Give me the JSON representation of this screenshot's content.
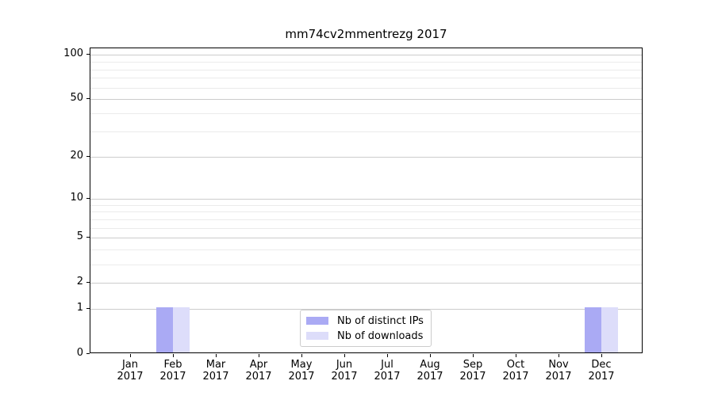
{
  "chart_data": {
    "type": "bar",
    "title": "mm74cv2mmentrezg 2017",
    "categories": [
      "Jan 2017",
      "Feb 2017",
      "Mar 2017",
      "Apr 2017",
      "May 2017",
      "Jun 2017",
      "Jul 2017",
      "Aug 2017",
      "Sep 2017",
      "Oct 2017",
      "Nov 2017",
      "Dec 2017"
    ],
    "x_tick_month_labels": [
      "Jan",
      "Feb",
      "Mar",
      "Apr",
      "May",
      "Jun",
      "Jul",
      "Aug",
      "Sep",
      "Oct",
      "Nov",
      "Dec"
    ],
    "x_tick_year_label": "2017",
    "series": [
      {
        "name": "Nb of distinct IPs",
        "color": "#aaaaf4",
        "values": [
          0,
          1,
          0,
          0,
          0,
          0,
          0,
          0,
          0,
          0,
          0,
          1
        ]
      },
      {
        "name": "Nb of downloads",
        "color": "#ddddfa",
        "values": [
          0,
          1,
          0,
          0,
          0,
          0,
          0,
          0,
          0,
          0,
          0,
          1
        ]
      }
    ],
    "y_axis": {
      "scale": "log1p",
      "major_ticks": [
        0,
        1,
        2,
        5,
        10,
        20,
        50,
        100
      ],
      "minor_gridline_values": [
        3,
        4,
        6,
        7,
        8,
        9,
        30,
        40,
        60,
        70,
        80,
        90
      ],
      "ylim": [
        0,
        111
      ]
    },
    "grid": "horizontal",
    "legend_position": "lower center",
    "colors": {
      "major_grid": "#cccccc",
      "minor_grid": "#ebebeb",
      "spine": "#000000",
      "background": "#ffffff",
      "text": "#000000"
    }
  }
}
